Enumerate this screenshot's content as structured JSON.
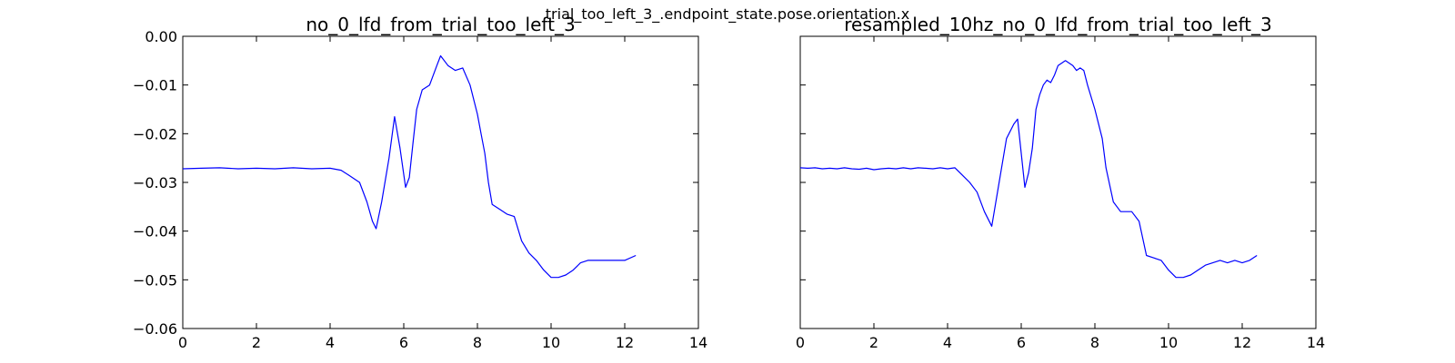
{
  "figure": {
    "suptitle": "trial_too_left_3_.endpoint_state.pose.orientation.x",
    "line_color": "#0000ff"
  },
  "chart_data": [
    {
      "type": "line",
      "title": "no_0_lfd_from_trial_too_left_3",
      "xlim": [
        0,
        14
      ],
      "ylim": [
        -0.06,
        0.0
      ],
      "xticks": [
        0,
        2,
        4,
        6,
        8,
        10,
        12,
        14
      ],
      "yticks": [
        0.0,
        -0.01,
        -0.02,
        -0.03,
        -0.04,
        -0.05,
        -0.06
      ],
      "xtick_labels": [
        "0",
        "2",
        "4",
        "6",
        "8",
        "10",
        "12",
        "14"
      ],
      "ytick_labels": [
        "0.00",
        "−0.01",
        "−0.02",
        "−0.03",
        "−0.04",
        "−0.05",
        "−0.06"
      ],
      "show_ytick_labels": true,
      "grid": false,
      "series": [
        {
          "x": [
            0,
            0.5,
            1.0,
            1.5,
            2.0,
            2.5,
            3.0,
            3.5,
            4.0,
            4.3,
            4.5,
            4.8,
            5.0,
            5.15,
            5.25,
            5.4,
            5.6,
            5.75,
            5.9,
            6.05,
            6.15,
            6.25,
            6.35,
            6.5,
            6.7,
            6.9,
            7.0,
            7.2,
            7.4,
            7.6,
            7.8,
            8.0,
            8.1,
            8.2,
            8.3,
            8.4,
            8.6,
            8.8,
            9.0,
            9.2,
            9.4,
            9.6,
            9.8,
            10.0,
            10.2,
            10.4,
            10.6,
            10.8,
            11.0,
            11.5,
            12.0,
            12.3
          ],
          "y": [
            -0.0272,
            -0.0271,
            -0.027,
            -0.0272,
            -0.0271,
            -0.0272,
            -0.027,
            -0.0272,
            -0.0271,
            -0.0275,
            -0.0285,
            -0.03,
            -0.034,
            -0.038,
            -0.0395,
            -0.034,
            -0.025,
            -0.0165,
            -0.023,
            -0.031,
            -0.029,
            -0.022,
            -0.015,
            -0.011,
            -0.01,
            -0.006,
            -0.004,
            -0.006,
            -0.007,
            -0.0065,
            -0.01,
            -0.016,
            -0.02,
            -0.024,
            -0.03,
            -0.0345,
            -0.0355,
            -0.0365,
            -0.037,
            -0.042,
            -0.0445,
            -0.046,
            -0.048,
            -0.0495,
            -0.0495,
            -0.049,
            -0.048,
            -0.0465,
            -0.046,
            -0.046,
            -0.046,
            -0.045
          ]
        }
      ]
    },
    {
      "type": "line",
      "title": "resampled_10hz_no_0_lfd_from_trial_too_left_3",
      "xlim": [
        0,
        14
      ],
      "ylim": [
        -0.06,
        0.0
      ],
      "xticks": [
        0,
        2,
        4,
        6,
        8,
        10,
        12,
        14
      ],
      "yticks": [
        0.0,
        -0.01,
        -0.02,
        -0.03,
        -0.04,
        -0.05,
        -0.06
      ],
      "xtick_labels": [
        "0",
        "2",
        "4",
        "6",
        "8",
        "10",
        "12",
        "14"
      ],
      "ytick_labels": [],
      "show_ytick_labels": false,
      "grid": false,
      "series": [
        {
          "x": [
            0,
            0.2,
            0.4,
            0.6,
            0.8,
            1.0,
            1.2,
            1.4,
            1.6,
            1.8,
            2.0,
            2.2,
            2.4,
            2.6,
            2.8,
            3.0,
            3.2,
            3.4,
            3.6,
            3.8,
            4.0,
            4.2,
            4.4,
            4.6,
            4.8,
            5.0,
            5.2,
            5.4,
            5.6,
            5.8,
            5.9,
            6.0,
            6.1,
            6.2,
            6.3,
            6.4,
            6.5,
            6.6,
            6.7,
            6.8,
            6.9,
            7.0,
            7.2,
            7.4,
            7.5,
            7.6,
            7.7,
            7.8,
            8.0,
            8.2,
            8.3,
            8.5,
            8.7,
            8.9,
            9.0,
            9.2,
            9.4,
            9.6,
            9.8,
            10.0,
            10.2,
            10.4,
            10.6,
            10.8,
            11.0,
            11.2,
            11.4,
            11.6,
            11.8,
            12.0,
            12.2,
            12.4
          ],
          "y": [
            -0.027,
            -0.0271,
            -0.027,
            -0.0272,
            -0.0271,
            -0.0272,
            -0.027,
            -0.0272,
            -0.0273,
            -0.0271,
            -0.0274,
            -0.0272,
            -0.0271,
            -0.0272,
            -0.027,
            -0.0272,
            -0.027,
            -0.0271,
            -0.0272,
            -0.027,
            -0.0272,
            -0.027,
            -0.0285,
            -0.03,
            -0.032,
            -0.036,
            -0.039,
            -0.03,
            -0.021,
            -0.018,
            -0.017,
            -0.024,
            -0.031,
            -0.028,
            -0.023,
            -0.015,
            -0.012,
            -0.01,
            -0.009,
            -0.0095,
            -0.008,
            -0.006,
            -0.005,
            -0.006,
            -0.007,
            -0.0065,
            -0.007,
            -0.01,
            -0.015,
            -0.021,
            -0.027,
            -0.034,
            -0.036,
            -0.036,
            -0.036,
            -0.038,
            -0.045,
            -0.0455,
            -0.046,
            -0.048,
            -0.0495,
            -0.0495,
            -0.049,
            -0.048,
            -0.047,
            -0.0465,
            -0.046,
            -0.0465,
            -0.046,
            -0.0465,
            -0.046,
            -0.045
          ]
        }
      ]
    }
  ]
}
